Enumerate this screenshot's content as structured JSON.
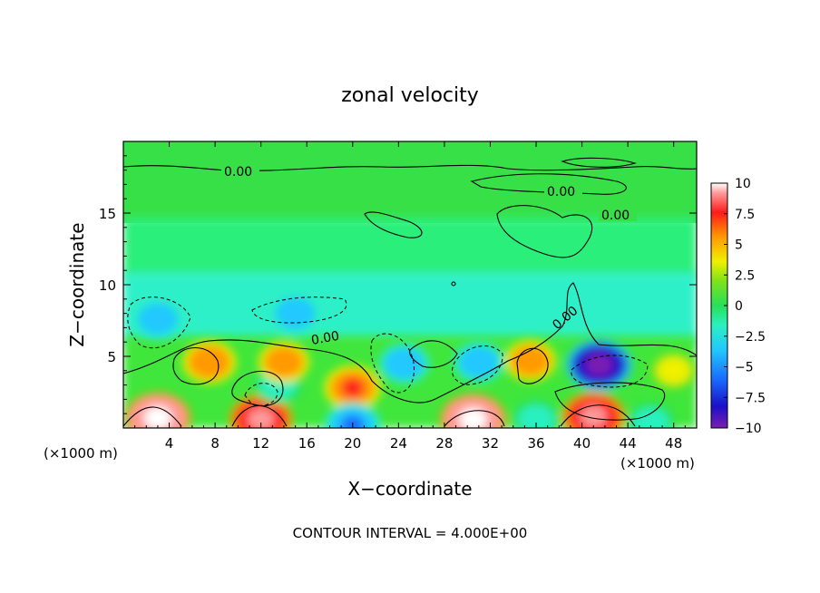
{
  "chart_data": {
    "type": "heatmap",
    "title": "zonal velocity",
    "xlabel": "X−coordinate",
    "ylabel": "Z−coordinate",
    "x_unit_left": "(×1000 m)",
    "x_unit_right": "(×1000 m)",
    "footer": "CONTOUR INTERVAL = 4.000E+00",
    "xlim": [
      0,
      50
    ],
    "ylim": [
      0,
      20
    ],
    "x_ticks": [
      4,
      8,
      12,
      16,
      20,
      24,
      28,
      32,
      36,
      40,
      44,
      48
    ],
    "y_ticks": [
      5,
      10,
      15
    ],
    "contour_labels": [
      "0.00",
      "0.00",
      "0.00",
      "0.00",
      "0.00"
    ],
    "colorbar": {
      "min": -10,
      "max": 10,
      "ticks": [
        "10",
        "7.5",
        "5",
        "2.5",
        "0",
        "−2.5",
        "−5",
        "−7.5",
        "−10"
      ]
    },
    "color_scale": [
      "#7a1fb0",
      "#1a10c8",
      "#1a6cff",
      "#22c8ff",
      "#2bf0c0",
      "#27e05a",
      "#7ee21a",
      "#f0f000",
      "#ff9a00",
      "#ff1a1a",
      "#ff9a9a",
      "#ffffff"
    ],
    "features": [
      {
        "x": 3,
        "z": 0.7,
        "value": 10
      },
      {
        "x": 7.5,
        "z": 4.6,
        "value": 6
      },
      {
        "x": 12,
        "z": 0.6,
        "value": 9
      },
      {
        "x": 13.5,
        "z": 3.0,
        "value": -4
      },
      {
        "x": 14,
        "z": 4.6,
        "value": 5
      },
      {
        "x": 3,
        "z": 7.6,
        "value": -5
      },
      {
        "x": 15,
        "z": 8.0,
        "value": -5
      },
      {
        "x": 20,
        "z": 2.8,
        "value": 7
      },
      {
        "x": 20,
        "z": 0.2,
        "value": -7
      },
      {
        "x": 24.5,
        "z": 4.5,
        "value": -5
      },
      {
        "x": 30.5,
        "z": 0.6,
        "value": 10
      },
      {
        "x": 31,
        "z": 4.6,
        "value": -5
      },
      {
        "x": 35.5,
        "z": 4.7,
        "value": 5
      },
      {
        "x": 36,
        "z": 0.6,
        "value": -4
      },
      {
        "x": 41.5,
        "z": 4.4,
        "value": -10
      },
      {
        "x": 41,
        "z": 0.8,
        "value": 9
      },
      {
        "x": 46,
        "z": 0.4,
        "value": -4
      },
      {
        "x": 48,
        "z": 4.0,
        "value": 3
      }
    ]
  }
}
